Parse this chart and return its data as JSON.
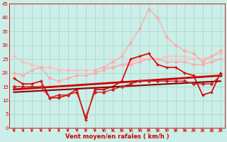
{
  "background_color": "#cceee8",
  "grid_color": "#aaddcc",
  "xlabel": "Vent moyen/en rafales ( km/h )",
  "xlabel_color": "#cc0000",
  "tick_color": "#cc0000",
  "xlim": [
    -0.5,
    23.5
  ],
  "ylim": [
    0,
    45
  ],
  "yticks": [
    0,
    5,
    10,
    15,
    20,
    25,
    30,
    35,
    40,
    45
  ],
  "xticks": [
    0,
    1,
    2,
    3,
    4,
    5,
    6,
    7,
    8,
    9,
    10,
    11,
    12,
    13,
    14,
    15,
    16,
    17,
    18,
    19,
    20,
    21,
    22,
    23
  ],
  "series": [
    {
      "x": [
        0,
        1,
        2,
        3,
        4,
        5,
        6,
        7,
        8,
        9,
        10,
        11,
        12,
        13,
        14,
        15,
        16,
        17,
        18,
        19,
        20,
        21,
        22,
        23
      ],
      "y": [
        26,
        24,
        23,
        22,
        22,
        21,
        21,
        21,
        21,
        21,
        22,
        22,
        23,
        24,
        25,
        25,
        25,
        26,
        26,
        26,
        25,
        25,
        26,
        27
      ],
      "color": "#ffbbbb",
      "linewidth": 1.0,
      "marker": "D",
      "markersize": 2.0,
      "linestyle": "-"
    },
    {
      "x": [
        9,
        10,
        11,
        12,
        13,
        14,
        15,
        16,
        17,
        18,
        19,
        20,
        21,
        22,
        23
      ],
      "y": [
        21,
        22,
        24,
        26,
        31,
        36,
        43,
        40,
        33,
        30,
        28,
        27,
        24,
        26,
        28
      ],
      "color": "#ffaaaa",
      "linewidth": 1.0,
      "marker": "D",
      "markersize": 2.0,
      "linestyle": "-"
    },
    {
      "x": [
        0,
        1,
        2,
        3,
        4,
        5,
        6,
        7,
        8,
        9,
        10,
        11,
        12,
        13,
        14,
        15,
        16,
        17,
        18,
        19,
        20,
        21,
        22,
        23
      ],
      "y": [
        20,
        19,
        21,
        22,
        18,
        17,
        18,
        19,
        19,
        20,
        21,
        22,
        23,
        23,
        24,
        25,
        25,
        24,
        24,
        24,
        23,
        23,
        24,
        25
      ],
      "color": "#ffaaaa",
      "linewidth": 1.0,
      "marker": "D",
      "markersize": 2.0,
      "linestyle": "-"
    },
    {
      "x": [
        0,
        1,
        2,
        3,
        4,
        5,
        6,
        7,
        8,
        9,
        10,
        11,
        12,
        13,
        14,
        15,
        16,
        17,
        18,
        19,
        20,
        21,
        22,
        23
      ],
      "y": [
        18,
        16,
        16,
        17,
        11,
        11,
        12,
        14,
        3,
        14,
        14,
        15,
        17,
        25,
        26,
        27,
        23,
        22,
        22,
        20,
        19,
        12,
        13,
        20
      ],
      "color": "#dd0000",
      "linewidth": 1.2,
      "marker": "+",
      "markersize": 3,
      "linestyle": "-"
    },
    {
      "x": [
        0,
        23
      ],
      "y": [
        14,
        19
      ],
      "color": "#cc0000",
      "linewidth": 2.0,
      "marker": null,
      "markersize": 0,
      "linestyle": "-"
    },
    {
      "x": [
        0,
        23
      ],
      "y": [
        13,
        17
      ],
      "color": "#880000",
      "linewidth": 1.5,
      "marker": null,
      "markersize": 0,
      "linestyle": "-"
    },
    {
      "x": [
        0,
        1,
        2,
        3,
        4,
        5,
        6,
        7,
        8,
        9,
        10,
        11,
        12,
        13,
        14,
        15,
        16,
        17,
        18,
        19,
        20,
        21,
        22,
        23
      ],
      "y": [
        15,
        15,
        15,
        15,
        11,
        12,
        12,
        13,
        4,
        13,
        13,
        14,
        15,
        16,
        17,
        17,
        17,
        17,
        17,
        17,
        16,
        16,
        16,
        19
      ],
      "color": "#cc2222",
      "linewidth": 1.0,
      "marker": "D",
      "markersize": 2.0,
      "linestyle": "-"
    }
  ],
  "arrow_color": "#cc0000"
}
